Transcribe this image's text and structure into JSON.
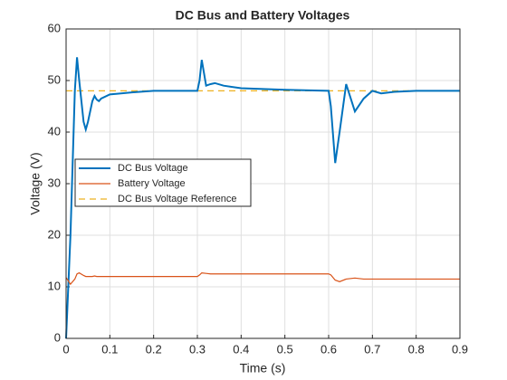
{
  "chart_data": {
    "type": "line",
    "title": "DC Bus and Battery Voltages",
    "x_label": "Time (s)",
    "y_label": "Voltage (V)",
    "x": [
      0,
      0.01,
      0.02,
      0.025,
      0.03,
      0.04,
      0.045,
      0.05,
      0.06,
      0.065,
      0.07,
      0.075,
      0.08,
      0.1,
      0.15,
      0.2,
      0.25,
      0.3,
      0.305,
      0.31,
      0.32,
      0.33,
      0.34,
      0.36,
      0.4,
      0.5,
      0.6,
      0.605,
      0.615,
      0.625,
      0.64,
      0.66,
      0.68,
      0.7,
      0.72,
      0.75,
      0.8,
      0.85,
      0.9
    ],
    "series": [
      {
        "name": "DC Bus Voltage",
        "color": "#0072BD",
        "style": "solid",
        "values": [
          0,
          20,
          48,
          54.5,
          50,
          42,
          40.5,
          42,
          46,
          47,
          46.3,
          46,
          46.5,
          47.3,
          47.7,
          48,
          48,
          48,
          50,
          54,
          49,
          49.3,
          49.5,
          49,
          48.5,
          48.2,
          48,
          45,
          34,
          40,
          49.3,
          44,
          46.5,
          48,
          47.5,
          47.8,
          48,
          48,
          48
        ]
      },
      {
        "name": "Battery Voltage",
        "color": "#D95319",
        "style": "solid",
        "values": [
          11.8,
          10.5,
          11.5,
          12.5,
          12.7,
          12.2,
          12,
          12,
          12,
          12.1,
          12,
          12,
          12,
          12,
          12,
          12,
          12,
          12,
          12.3,
          12.7,
          12.6,
          12.5,
          12.5,
          12.5,
          12.5,
          12.5,
          12.5,
          12.3,
          11.3,
          11,
          11.5,
          11.7,
          11.5,
          11.5,
          11.5,
          11.5,
          11.5,
          11.5,
          11.5
        ]
      },
      {
        "name": "DC Bus Voltage Reference",
        "color": "#EDB120",
        "style": "dashed",
        "values": [
          48,
          48,
          48,
          48,
          48,
          48,
          48,
          48,
          48,
          48,
          48,
          48,
          48,
          48,
          48,
          48,
          48,
          48,
          48,
          48,
          48,
          48,
          48,
          48,
          48,
          48,
          48,
          48,
          48,
          48,
          48,
          48,
          48,
          48,
          48,
          48,
          48,
          48,
          48
        ]
      }
    ],
    "xlim": [
      0,
      0.9
    ],
    "xticks": [
      0,
      0.1,
      0.2,
      0.3,
      0.4,
      0.5,
      0.6,
      0.7,
      0.8,
      0.9
    ],
    "ylim": [
      0,
      60
    ],
    "yticks": [
      0,
      10,
      20,
      30,
      40,
      50,
      60
    ],
    "grid": true,
    "legend": "west"
  }
}
